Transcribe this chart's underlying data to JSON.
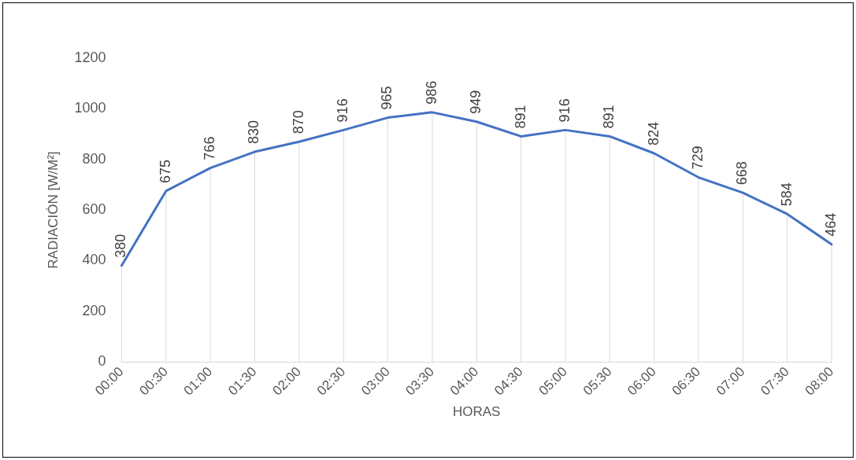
{
  "chart_data": {
    "type": "line",
    "xlabel": "HORAS",
    "ylabel": "RADIACIÓN [W/M²]",
    "categories": [
      "00:00",
      "00:30",
      "01:00",
      "01:30",
      "02:00",
      "02:30",
      "03:00",
      "03:30",
      "04:00",
      "04:30",
      "05:00",
      "05:30",
      "06:00",
      "06:30",
      "07:00",
      "07:30",
      "08:00"
    ],
    "series": [
      {
        "color": "#4472c4",
        "values": [
          380,
          675,
          766,
          830,
          870,
          916,
          965,
          986,
          949,
          891,
          916,
          891,
          824,
          729,
          668,
          584,
          464
        ]
      }
    ],
    "ylim": [
      0,
      1200
    ],
    "yticks": [
      0,
      200,
      400,
      600,
      800,
      1000,
      1200
    ],
    "grid": "x",
    "legend": false,
    "marker": "none",
    "line_style": "solid",
    "data_labels": true
  }
}
